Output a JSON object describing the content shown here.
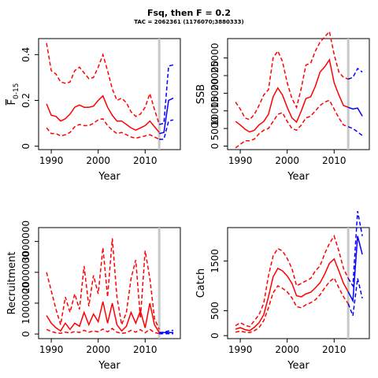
{
  "title": "Fsq, then F = 0.2",
  "subtitle": "TAC = 2062361 (1176070;3880333)",
  "colors": {
    "history": "#ff0000",
    "projection": "#0000ff",
    "marker": "#c8c8c8"
  },
  "chart_data": [
    {
      "type": "line",
      "xlabel": "Year",
      "ylabel": "F",
      "ylabel_sub": "0-15",
      "xlim": [
        1987.3,
        2017.5
      ],
      "ylim": [
        -0.015,
        0.47
      ],
      "xticks": [
        1990,
        2000,
        2010
      ],
      "yticks": [
        0,
        0.2,
        0.4
      ],
      "ytick_labels": [
        "0",
        "0.2",
        "0.4"
      ],
      "vline": 2013,
      "x": [
        1989,
        1990,
        1991,
        1992,
        1993,
        1994,
        1995,
        1996,
        1997,
        1998,
        1999,
        2000,
        2001,
        2002,
        2003,
        2004,
        2005,
        2006,
        2007,
        2008,
        2009,
        2010,
        2011,
        2012,
        2013
      ],
      "series": [
        {
          "role": "median",
          "values": [
            0.185,
            0.135,
            0.13,
            0.11,
            0.12,
            0.14,
            0.17,
            0.18,
            0.17,
            0.17,
            0.175,
            0.2,
            0.22,
            0.17,
            0.135,
            0.11,
            0.11,
            0.095,
            0.08,
            0.07,
            0.08,
            0.09,
            0.11,
            0.085,
            0.06
          ]
        },
        {
          "role": "upper",
          "values": [
            0.45,
            0.33,
            0.315,
            0.28,
            0.275,
            0.28,
            0.33,
            0.345,
            0.32,
            0.295,
            0.3,
            0.345,
            0.4,
            0.33,
            0.25,
            0.2,
            0.21,
            0.19,
            0.15,
            0.13,
            0.14,
            0.17,
            0.23,
            0.16,
            0.095
          ]
        },
        {
          "role": "lower",
          "values": [
            0.08,
            0.055,
            0.055,
            0.045,
            0.05,
            0.06,
            0.085,
            0.095,
            0.09,
            0.09,
            0.1,
            0.115,
            0.12,
            0.09,
            0.07,
            0.055,
            0.06,
            0.05,
            0.04,
            0.035,
            0.04,
            0.045,
            0.05,
            0.04,
            0.03
          ]
        }
      ],
      "projection_x": [
        2013,
        2014,
        2015,
        2016
      ],
      "projection": [
        {
          "role": "median",
          "values": [
            0.055,
            0.06,
            0.2,
            0.21
          ]
        },
        {
          "role": "upper",
          "values": [
            0.095,
            0.1,
            0.35,
            0.355
          ]
        },
        {
          "role": "lower",
          "values": [
            0.03,
            0.03,
            0.11,
            0.115
          ]
        }
      ]
    },
    {
      "type": "line",
      "xlabel": "Year",
      "ylabel": "SSB",
      "xlim": [
        1987.3,
        2017.5
      ],
      "ylim": [
        -1000,
        30500
      ],
      "xticks": [
        1990,
        2000,
        2010
      ],
      "yticks": [
        0,
        5000,
        10000,
        15000,
        20000,
        25000
      ],
      "ytick_labels": [
        "0",
        "5000",
        "10000",
        "15000",
        "20000",
        "25000"
      ],
      "vline": 2013,
      "x": [
        1989,
        1990,
        1991,
        1992,
        1993,
        1994,
        1995,
        1996,
        1997,
        1998,
        1999,
        2000,
        2001,
        2002,
        2003,
        2004,
        2005,
        2006,
        2007,
        2008,
        2009,
        2010,
        2011,
        2012,
        2013
      ],
      "series": [
        {
          "role": "median",
          "values": [
            7000,
            6000,
            4800,
            4000,
            4500,
            6000,
            7000,
            9000,
            14000,
            16500,
            14500,
            11000,
            8000,
            6800,
            10000,
            13500,
            14000,
            17000,
            21000,
            22500,
            24500,
            18000,
            14500,
            11500,
            11000
          ]
        },
        {
          "role": "upper",
          "values": [
            12500,
            10500,
            8000,
            7500,
            9000,
            11500,
            14500,
            16000,
            25000,
            27000,
            24000,
            18000,
            13500,
            11000,
            16500,
            23000,
            23500,
            27000,
            29500,
            31000,
            32500,
            26000,
            21000,
            19500,
            19000
          ]
        },
        {
          "role": "lower",
          "values": [
            -500,
            500,
            1500,
            1500,
            2000,
            3500,
            4500,
            5000,
            7000,
            9000,
            9500,
            7000,
            5000,
            4500,
            6000,
            8000,
            8500,
            10000,
            11500,
            12500,
            13000,
            10500,
            8000,
            6000,
            5500
          ]
        }
      ],
      "projection_x": [
        2013,
        2014,
        2015,
        2016
      ],
      "projection": [
        {
          "role": "median",
          "values": [
            11000,
            10500,
            10800,
            8500
          ]
        },
        {
          "role": "upper",
          "values": [
            19000,
            19500,
            22000,
            21000
          ]
        },
        {
          "role": "lower",
          "values": [
            5500,
            5000,
            4000,
            3000
          ]
        }
      ]
    },
    {
      "type": "line",
      "xlabel": "Year",
      "ylabel": "Recruitment",
      "xlim": [
        1987.3,
        2017.5
      ],
      "ylim": [
        -150000,
        3450000
      ],
      "xticks": [
        1990,
        2000,
        2010
      ],
      "yticks": [
        0,
        1000000,
        2000000,
        3000000
      ],
      "ytick_labels": [
        "0",
        "1000000",
        "2000000",
        "3000000"
      ],
      "vline": 2013,
      "x": [
        1989,
        1990,
        1991,
        1992,
        1993,
        1994,
        1995,
        1996,
        1997,
        1998,
        1999,
        2000,
        2001,
        2002,
        2003,
        2004,
        2005,
        2006,
        2007,
        2008,
        2009,
        2010,
        2011,
        2012,
        2013
      ],
      "series": [
        {
          "role": "median",
          "values": [
            600000,
            350000,
            200000,
            100000,
            350000,
            150000,
            350000,
            250000,
            700000,
            300000,
            650000,
            400000,
            1050000,
            350000,
            1000000,
            300000,
            100000,
            250000,
            700000,
            350000,
            750000,
            200000,
            1000000,
            300000,
            50000
          ]
        },
        {
          "role": "upper",
          "values": [
            2000000,
            1400000,
            800000,
            300000,
            1200000,
            700000,
            1300000,
            800000,
            2200000,
            900000,
            1900000,
            1300000,
            2800000,
            1200000,
            3100000,
            1200000,
            300000,
            700000,
            1800000,
            2400000,
            500000,
            2700000,
            1800000,
            500000,
            150000
          ]
        },
        {
          "role": "lower",
          "values": [
            150000,
            80000,
            40000,
            20000,
            60000,
            30000,
            80000,
            50000,
            120000,
            60000,
            100000,
            70000,
            160000,
            70000,
            180000,
            60000,
            20000,
            40000,
            120000,
            60000,
            140000,
            40000,
            150000,
            50000,
            10000
          ]
        }
      ],
      "projection_x": [
        2013,
        2014,
        2015,
        2016
      ],
      "projection": [
        {
          "role": "median",
          "values": [
            50000,
            50000,
            50000,
            50000
          ]
        },
        {
          "role": "upper",
          "values": [
            50000,
            55000,
            100000,
            120000
          ]
        },
        {
          "role": "lower",
          "values": [
            10000,
            10000,
            10000,
            10000
          ]
        }
      ]
    },
    {
      "type": "line",
      "xlabel": "Year",
      "ylabel": "Catch",
      "xlim": [
        1987.3,
        2017.5
      ],
      "ylim": [
        -60,
        2170
      ],
      "xticks": [
        1990,
        2000,
        2010
      ],
      "yticks": [
        0,
        500,
        1500
      ],
      "ytick_labels": [
        "0",
        "500",
        "1500"
      ],
      "vline": 2013,
      "x": [
        1989,
        1990,
        1991,
        1992,
        1993,
        1994,
        1995,
        1996,
        1997,
        1998,
        1999,
        2000,
        2001,
        2002,
        2003,
        2004,
        2005,
        2006,
        2007,
        2008,
        2009,
        2010,
        2011,
        2012,
        2013
      ],
      "series": [
        {
          "role": "median",
          "values": [
            130,
            160,
            120,
            100,
            170,
            260,
            420,
            780,
            1180,
            1350,
            1300,
            1200,
            1050,
            800,
            780,
            840,
            870,
            960,
            1060,
            1240,
            1450,
            1540,
            1300,
            1050,
            880
          ]
        },
        {
          "role": "upper",
          "values": [
            200,
            260,
            210,
            180,
            300,
            420,
            650,
            1200,
            1600,
            1750,
            1700,
            1550,
            1350,
            1000,
            1050,
            1100,
            1150,
            1300,
            1400,
            1650,
            1850,
            2000,
            1700,
            1350,
            1150
          ]
        },
        {
          "role": "lower",
          "values": [
            70,
            90,
            70,
            60,
            100,
            160,
            300,
            560,
            860,
            1000,
            950,
            880,
            760,
            580,
            560,
            620,
            660,
            720,
            820,
            960,
            1080,
            1160,
            960,
            780,
            640
          ]
        }
      ],
      "projection_x": [
        2013,
        2014,
        2015,
        2016
      ],
      "projection": [
        {
          "role": "median",
          "values": [
            880,
            700,
            2000,
            1630
          ]
        },
        {
          "role": "upper",
          "values": [
            1150,
            1000,
            2500,
            2000
          ]
        },
        {
          "role": "lower",
          "values": [
            640,
            400,
            1150,
            750
          ]
        }
      ]
    }
  ]
}
